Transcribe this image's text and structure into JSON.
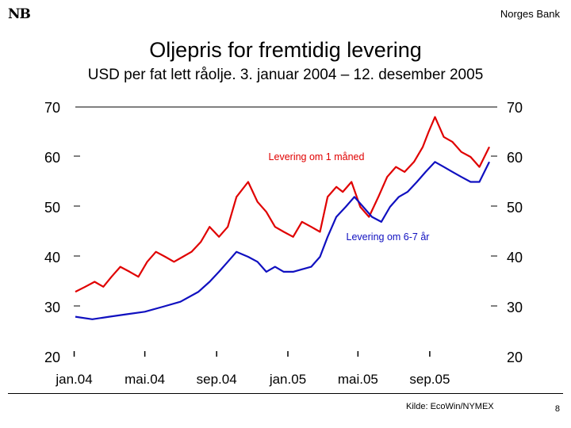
{
  "header": {
    "logo_text": "NB",
    "bank_name": "Norges Bank"
  },
  "title": "Oljepris for fremtidig levering",
  "subtitle": "USD per fat lett råolje. 3. januar 2004 – 12. desember 2005",
  "footer": {
    "source": "Kilde: EcoWin/NYMEX",
    "page": "8"
  },
  "chart_data": {
    "type": "line",
    "ylim": [
      20,
      70
    ],
    "yticks": [
      20,
      30,
      40,
      50,
      60,
      70
    ],
    "xlim": [
      "2004-01-03",
      "2005-12-12"
    ],
    "xtick_labels": [
      "jan.04",
      "mai.04",
      "sep.04",
      "jan.05",
      "mai.05",
      "sep.05"
    ],
    "xtick_dates": [
      "2004-01-01",
      "2004-05-01",
      "2004-09-01",
      "2005-01-01",
      "2005-05-01",
      "2005-09-01"
    ],
    "annotations": [
      "Levering om 1 måned",
      "Levering om 6-7 år"
    ],
    "series": [
      {
        "name": "Levering om 1 måned",
        "color": "#e00000",
        "x": [
          "2004-01-03",
          "2004-01-20",
          "2004-02-05",
          "2004-02-20",
          "2004-03-05",
          "2004-03-20",
          "2004-04-05",
          "2004-04-20",
          "2004-05-05",
          "2004-05-20",
          "2004-06-05",
          "2004-06-20",
          "2004-07-05",
          "2004-07-20",
          "2004-08-05",
          "2004-08-20",
          "2004-09-05",
          "2004-09-20",
          "2004-10-05",
          "2004-10-25",
          "2004-11-10",
          "2004-11-25",
          "2004-12-10",
          "2004-12-25",
          "2005-01-10",
          "2005-01-25",
          "2005-02-10",
          "2005-02-25",
          "2005-03-10",
          "2005-03-25",
          "2005-04-05",
          "2005-04-20",
          "2005-05-05",
          "2005-05-20",
          "2005-06-05",
          "2005-06-20",
          "2005-07-05",
          "2005-07-20",
          "2005-08-05",
          "2005-08-20",
          "2005-08-30",
          "2005-09-10",
          "2005-09-25",
          "2005-10-10",
          "2005-10-25",
          "2005-11-10",
          "2005-11-25",
          "2005-12-12"
        ],
        "y": [
          33,
          34,
          35,
          34,
          36,
          38,
          37,
          36,
          39,
          41,
          40,
          39,
          40,
          41,
          43,
          46,
          44,
          46,
          52,
          55,
          51,
          49,
          46,
          45,
          44,
          47,
          46,
          45,
          52,
          54,
          53,
          55,
          50,
          48,
          52,
          56,
          58,
          57,
          59,
          62,
          65,
          68,
          64,
          63,
          61,
          60,
          58,
          62
        ]
      },
      {
        "name": "Levering om 6-7 år",
        "color": "#1010c0",
        "x": [
          "2004-01-03",
          "2004-02-01",
          "2004-03-01",
          "2004-04-01",
          "2004-05-01",
          "2004-06-01",
          "2004-07-01",
          "2004-08-01",
          "2004-08-20",
          "2004-09-05",
          "2004-09-20",
          "2004-10-05",
          "2004-10-25",
          "2004-11-10",
          "2004-11-25",
          "2004-12-10",
          "2004-12-25",
          "2005-01-10",
          "2005-01-25",
          "2005-02-10",
          "2005-02-25",
          "2005-03-10",
          "2005-03-25",
          "2005-04-10",
          "2005-04-25",
          "2005-05-10",
          "2005-05-25",
          "2005-06-10",
          "2005-06-25",
          "2005-07-10",
          "2005-07-25",
          "2005-08-10",
          "2005-08-25",
          "2005-09-10",
          "2005-09-25",
          "2005-10-10",
          "2005-10-25",
          "2005-11-10",
          "2005-11-25",
          "2005-12-12"
        ],
        "y": [
          28,
          27.5,
          28,
          28.5,
          29,
          30,
          31,
          33,
          35,
          37,
          39,
          41,
          40,
          39,
          37,
          38,
          37,
          37,
          37.5,
          38,
          40,
          44,
          48,
          50,
          52,
          50,
          48,
          47,
          50,
          52,
          53,
          55,
          57,
          59,
          58,
          57,
          56,
          55,
          55,
          59
        ]
      }
    ]
  }
}
